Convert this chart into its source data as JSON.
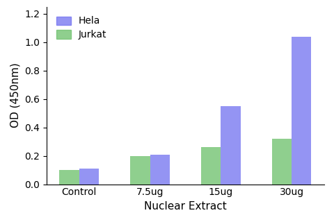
{
  "categories": [
    "Control",
    "7.5ug",
    "15ug",
    "30ug"
  ],
  "series": [
    {
      "label": "Hela",
      "values": [
        0.11,
        0.21,
        0.55,
        1.04
      ],
      "color": "#7070f0"
    },
    {
      "label": "Jurkat",
      "values": [
        0.1,
        0.2,
        0.26,
        0.32
      ],
      "color": "#6abf69"
    }
  ],
  "xlabel": "Nuclear Extract",
  "ylabel": "OD (450nm)",
  "ylim": [
    0,
    1.25
  ],
  "yticks": [
    0.0,
    0.2,
    0.4,
    0.6,
    0.8,
    1.0,
    1.2
  ],
  "bar_width": 0.28,
  "legend_loc": "upper left",
  "background_color": "#ffffff",
  "axis_fontsize": 11,
  "tick_fontsize": 10,
  "legend_fontsize": 10
}
